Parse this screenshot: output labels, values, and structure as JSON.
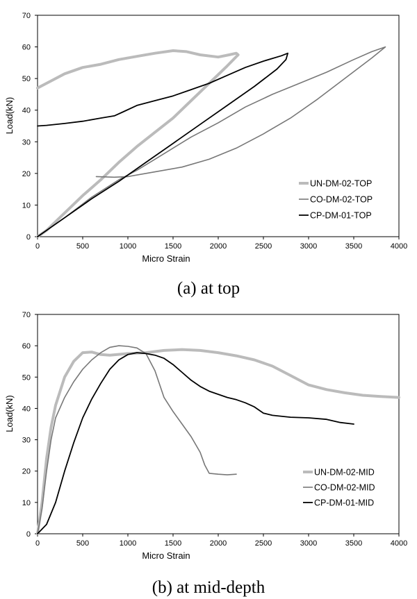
{
  "chart_data": [
    {
      "type": "line",
      "caption": "(a) at top",
      "xlabel": "Micro Strain",
      "ylabel": "Load(kN)",
      "xlim": [
        0,
        4000
      ],
      "ylim": [
        0,
        70
      ],
      "xticks": [
        0,
        500,
        1000,
        1500,
        2000,
        2500,
        3000,
        3500,
        4000
      ],
      "yticks": [
        0,
        10,
        20,
        30,
        40,
        50,
        60,
        70
      ],
      "grid": false,
      "legend_position": "bottom-right",
      "series": [
        {
          "name": "UN-DM-02-TOP",
          "color": "#bbbbbb",
          "width": 4,
          "points": [
            [
              0,
              47
            ],
            [
              100,
              48.5
            ],
            [
              300,
              51.5
            ],
            [
              500,
              53.5
            ],
            [
              700,
              54.5
            ],
            [
              900,
              56
            ],
            [
              1100,
              57
            ],
            [
              1300,
              58
            ],
            [
              1500,
              58.8
            ],
            [
              1650,
              58.5
            ],
            [
              1800,
              57.5
            ],
            [
              2000,
              56.8
            ],
            [
              2120,
              57.5
            ],
            [
              2200,
              58
            ],
            [
              2220,
              57.5
            ],
            [
              2100,
              54
            ],
            [
              1900,
              48.5
            ],
            [
              1700,
              43
            ],
            [
              1500,
              37.5
            ],
            [
              1300,
              33
            ],
            [
              1100,
              28.5
            ],
            [
              900,
              23.5
            ],
            [
              700,
              18
            ],
            [
              500,
              13
            ],
            [
              300,
              7.5
            ],
            [
              100,
              2
            ],
            [
              0,
              0
            ]
          ]
        },
        {
          "name": "CO-DM-02-TOP",
          "color": "#777777",
          "width": 1.6,
          "points": [
            [
              0,
              0
            ],
            [
              300,
              6
            ],
            [
              600,
              12.5
            ],
            [
              900,
              18
            ],
            [
              1100,
              21
            ],
            [
              1300,
              24.5
            ],
            [
              1500,
              28
            ],
            [
              1700,
              31.5
            ],
            [
              2000,
              36
            ],
            [
              2300,
              41
            ],
            [
              2600,
              45
            ],
            [
              2900,
              48.5
            ],
            [
              3200,
              52
            ],
            [
              3500,
              56
            ],
            [
              3700,
              58.5
            ],
            [
              3850,
              60
            ],
            [
              3700,
              56.5
            ],
            [
              3400,
              50
            ],
            [
              3100,
              43.5
            ],
            [
              2800,
              37.5
            ],
            [
              2500,
              32.5
            ],
            [
              2200,
              28
            ],
            [
              1900,
              24.5
            ],
            [
              1600,
              22
            ],
            [
              1300,
              20.5
            ],
            [
              1000,
              19
            ],
            [
              850,
              18.8
            ],
            [
              650,
              19
            ]
          ]
        },
        {
          "name": "CP-DM-01-TOP",
          "color": "#000000",
          "width": 1.8,
          "points": [
            [
              0,
              0
            ],
            [
              300,
              6
            ],
            [
              600,
              12
            ],
            [
              900,
              17.5
            ],
            [
              1200,
              23.5
            ],
            [
              1500,
              29.5
            ],
            [
              1800,
              35.5
            ],
            [
              2100,
              41.5
            ],
            [
              2400,
              47.5
            ],
            [
              2650,
              53
            ],
            [
              2750,
              56
            ],
            [
              2770,
              58
            ],
            [
              2700,
              57.2
            ],
            [
              2500,
              55.5
            ],
            [
              2300,
              53.5
            ],
            [
              2100,
              51
            ],
            [
              1900,
              48.5
            ],
            [
              1700,
              46.5
            ],
            [
              1500,
              44.5
            ],
            [
              1300,
              43
            ],
            [
              1100,
              41.5
            ],
            [
              950,
              39.5
            ],
            [
              850,
              38.2
            ],
            [
              700,
              37.5
            ],
            [
              500,
              36.5
            ],
            [
              300,
              35.8
            ],
            [
              100,
              35.2
            ],
            [
              0,
              35
            ]
          ]
        }
      ]
    },
    {
      "type": "line",
      "caption": "(b) at mid-depth",
      "xlabel": "Micro Strain",
      "ylabel": "Load(kN)",
      "xlim": [
        0,
        4000
      ],
      "ylim": [
        0,
        70
      ],
      "xticks": [
        0,
        500,
        1000,
        1500,
        2000,
        2500,
        3000,
        3500,
        4000
      ],
      "yticks": [
        0,
        10,
        20,
        30,
        40,
        50,
        60,
        70
      ],
      "grid": false,
      "legend_position": "bottom-right",
      "series": [
        {
          "name": "UN-DM-02-MID",
          "color": "#bbbbbb",
          "width": 4,
          "points": [
            [
              0,
              0
            ],
            [
              50,
              10
            ],
            [
              100,
              24
            ],
            [
              150,
              34
            ],
            [
              200,
              41
            ],
            [
              300,
              50
            ],
            [
              400,
              55
            ],
            [
              500,
              57.8
            ],
            [
              600,
              58
            ],
            [
              700,
              57.2
            ],
            [
              800,
              57
            ],
            [
              1000,
              57.5
            ],
            [
              1200,
              57.8
            ],
            [
              1400,
              58.5
            ],
            [
              1600,
              58.8
            ],
            [
              1800,
              58.5
            ],
            [
              2000,
              57.8
            ],
            [
              2200,
              56.8
            ],
            [
              2400,
              55.5
            ],
            [
              2600,
              53.5
            ],
            [
              2800,
              50.5
            ],
            [
              3000,
              47.5
            ],
            [
              3200,
              46
            ],
            [
              3400,
              45
            ],
            [
              3600,
              44.2
            ],
            [
              3800,
              43.8
            ],
            [
              4000,
              43.5
            ]
          ]
        },
        {
          "name": "CO-DM-02-MID",
          "color": "#777777",
          "width": 1.6,
          "points": [
            [
              0,
              0
            ],
            [
              50,
              8
            ],
            [
              100,
              20
            ],
            [
              150,
              30
            ],
            [
              200,
              37
            ],
            [
              300,
              43.5
            ],
            [
              400,
              48.5
            ],
            [
              500,
              52.5
            ],
            [
              600,
              55.5
            ],
            [
              700,
              57.8
            ],
            [
              800,
              59.5
            ],
            [
              900,
              60
            ],
            [
              1000,
              59.8
            ],
            [
              1100,
              59.3
            ],
            [
              1200,
              57.5
            ],
            [
              1300,
              52
            ],
            [
              1400,
              43.5
            ],
            [
              1500,
              39
            ],
            [
              1600,
              35
            ],
            [
              1700,
              31
            ],
            [
              1800,
              26
            ],
            [
              1850,
              22
            ],
            [
              1900,
              19.3
            ],
            [
              2000,
              19
            ],
            [
              2100,
              18.8
            ],
            [
              2200,
              19
            ]
          ]
        },
        {
          "name": "CP-DM-01-MID",
          "color": "#000000",
          "width": 1.8,
          "points": [
            [
              0,
              0
            ],
            [
              100,
              3
            ],
            [
              200,
              10
            ],
            [
              300,
              20
            ],
            [
              400,
              29
            ],
            [
              500,
              37
            ],
            [
              600,
              43
            ],
            [
              700,
              48
            ],
            [
              800,
              52.5
            ],
            [
              900,
              55.5
            ],
            [
              1000,
              57.2
            ],
            [
              1100,
              57.8
            ],
            [
              1200,
              57.5
            ],
            [
              1300,
              57
            ],
            [
              1400,
              56
            ],
            [
              1500,
              54
            ],
            [
              1600,
              51.5
            ],
            [
              1700,
              49
            ],
            [
              1800,
              47
            ],
            [
              1900,
              45.5
            ],
            [
              2000,
              44.5
            ],
            [
              2100,
              43.5
            ],
            [
              2200,
              42.8
            ],
            [
              2300,
              41.8
            ],
            [
              2400,
              40.5
            ],
            [
              2500,
              38.5
            ],
            [
              2600,
              37.8
            ],
            [
              2800,
              37.2
            ],
            [
              3000,
              37
            ],
            [
              3200,
              36.5
            ],
            [
              3350,
              35.5
            ],
            [
              3500,
              35
            ]
          ]
        }
      ]
    }
  ]
}
